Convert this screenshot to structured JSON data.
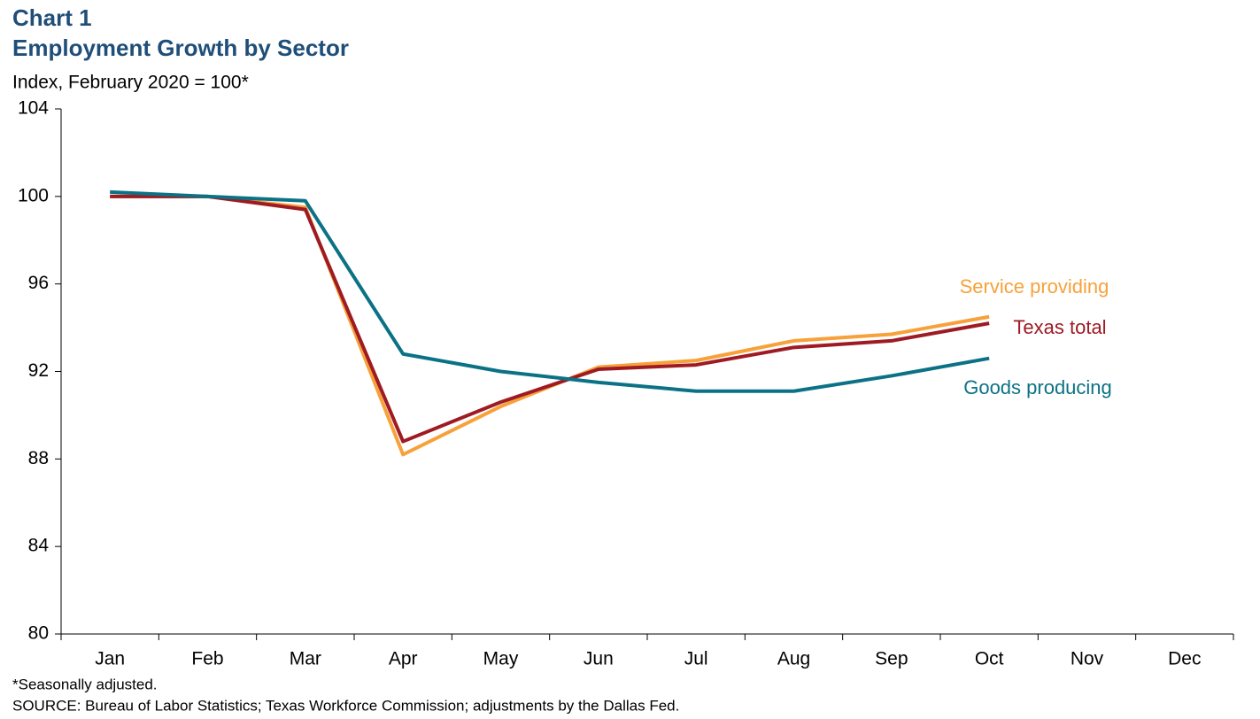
{
  "chart_data": {
    "type": "line",
    "title": "Chart 1",
    "subtitle": "Employment Growth by Sector",
    "y_label": "Index, February 2020 = 100*",
    "notes": [
      "*Seasonally adjusted.",
      "SOURCE: Bureau of Labor Statistics; Texas Workforce Commission; adjustments by the Dallas Fed."
    ],
    "categories": [
      "Jan",
      "Feb",
      "Mar",
      "Apr",
      "May",
      "Jun",
      "Jul",
      "Aug",
      "Sep",
      "Oct",
      "Nov",
      "Dec"
    ],
    "series": [
      {
        "name": "Service providing",
        "color": "#f7a13a",
        "values": [
          100.0,
          100.0,
          99.5,
          88.2,
          90.4,
          92.2,
          92.5,
          93.4,
          93.7,
          94.5,
          null,
          null
        ]
      },
      {
        "name": "Texas total",
        "color": "#9e1b24",
        "values": [
          100.0,
          100.0,
          99.4,
          88.8,
          90.6,
          92.1,
          92.3,
          93.1,
          93.4,
          94.2,
          null,
          null
        ]
      },
      {
        "name": "Goods producing",
        "color": "#0b7285",
        "values": [
          100.2,
          100.0,
          99.8,
          92.8,
          92.0,
          91.5,
          91.1,
          91.1,
          91.8,
          92.6,
          null,
          null
        ]
      }
    ],
    "ylim": [
      80,
      104
    ],
    "yticks": [
      80,
      84,
      88,
      92,
      96,
      100,
      104
    ],
    "grid": false
  }
}
